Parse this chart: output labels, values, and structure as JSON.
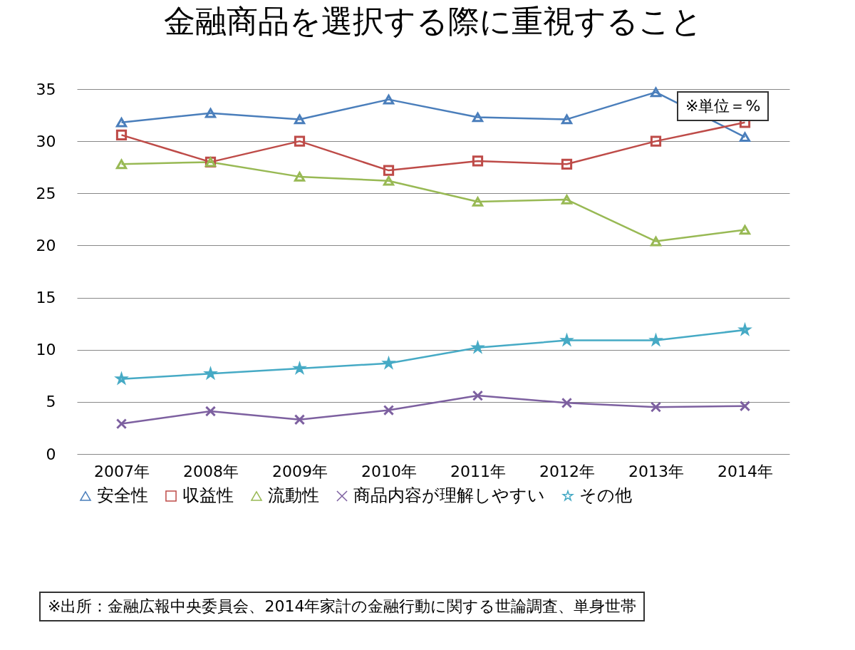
{
  "chart_data": {
    "type": "line",
    "title": "金融商品を選択する際に重視すること",
    "categories": [
      "2007年",
      "2008年",
      "2009年",
      "2010年",
      "2011年",
      "2012年",
      "2013年",
      "2014年"
    ],
    "series": [
      {
        "name": "安全性",
        "color": "#4a7ebb",
        "marker": "triangle",
        "values": [
          31.8,
          32.7,
          32.1,
          34.0,
          32.3,
          32.1,
          34.7,
          30.4
        ]
      },
      {
        "name": "収益性",
        "color": "#be4b48",
        "marker": "square",
        "values": [
          30.6,
          28.0,
          30.0,
          27.2,
          28.1,
          27.8,
          30.0,
          31.8
        ]
      },
      {
        "name": "流動性",
        "color": "#98b954",
        "marker": "triangle",
        "values": [
          27.8,
          28.0,
          26.6,
          26.2,
          24.2,
          24.4,
          20.4,
          21.5
        ]
      },
      {
        "name": "商品内容が理解しやすい",
        "color": "#7d60a0",
        "marker": "cross",
        "values": [
          2.9,
          4.1,
          3.3,
          4.2,
          5.6,
          4.9,
          4.5,
          4.6
        ]
      },
      {
        "name": "その他",
        "color": "#46aac5",
        "marker": "star",
        "values": [
          7.2,
          7.7,
          8.2,
          8.7,
          10.2,
          10.9,
          10.9,
          11.9
        ]
      }
    ],
    "ylim": [
      0,
      35
    ],
    "yticks": [
      0,
      5,
      10,
      15,
      20,
      25,
      30,
      35
    ],
    "grid": "y",
    "legend": "bottom",
    "annotations": [
      "※単位＝%",
      "※出所：金融広報中央委員会、2014年家計の金融行動に関する世論調査、単身世帯"
    ]
  }
}
